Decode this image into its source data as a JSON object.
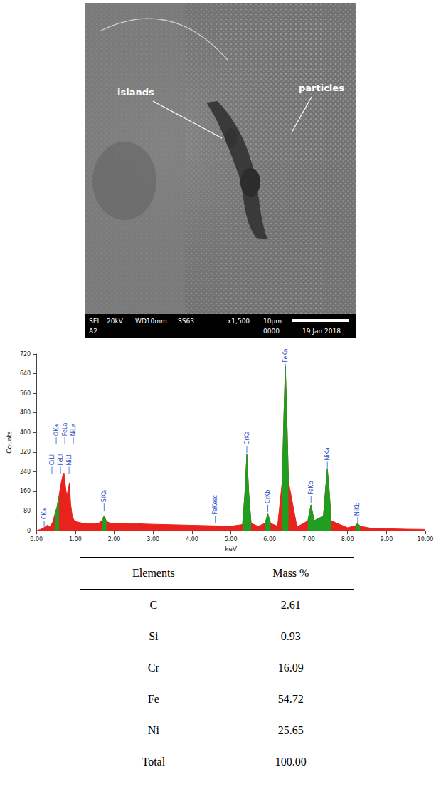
{
  "image": {
    "labels": [
      "islands",
      "particles"
    ],
    "info_bar": {
      "row1": [
        "SEI",
        "20kV",
        "WD10mm",
        "SS63",
        "x1,500",
        "10µm"
      ],
      "row2": [
        "A2",
        "0000",
        "19 Jan 2018"
      ]
    }
  },
  "chart_data": {
    "type": "line",
    "xlabel": "keV",
    "ylabel": "Counts",
    "x": [
      0,
      0.1,
      0.2,
      0.28,
      0.35,
      0.42,
      0.48,
      0.53,
      0.58,
      0.63,
      0.68,
      0.71,
      0.74,
      0.78,
      0.82,
      0.85,
      0.88,
      0.92,
      0.97,
      1.05,
      1.2,
      1.4,
      1.6,
      1.68,
      1.74,
      1.8,
      1.9,
      2.2,
      2.6,
      3.0,
      3.5,
      4.0,
      4.5,
      5.0,
      5.3,
      5.36,
      5.41,
      5.46,
      5.52,
      5.7,
      5.88,
      5.95,
      6.02,
      6.2,
      6.32,
      6.36,
      6.4,
      6.44,
      6.48,
      6.7,
      6.98,
      7.06,
      7.14,
      7.38,
      7.44,
      7.48,
      7.52,
      7.58,
      8.0,
      8.2,
      8.26,
      8.32,
      8.6,
      9.0,
      9.5,
      10.0
    ],
    "series": [
      {
        "color": "#e8231e",
        "values": [
          0,
          5,
          12,
          22,
          15,
          35,
          70,
          95,
          140,
          190,
          225,
          235,
          190,
          140,
          170,
          195,
          110,
          60,
          42,
          35,
          30,
          28,
          30,
          40,
          60,
          38,
          30,
          30,
          28,
          26,
          24,
          22,
          20,
          18,
          25,
          150,
          310,
          150,
          30,
          18,
          30,
          68,
          30,
          18,
          200,
          450,
          670,
          450,
          200,
          15,
          40,
          105,
          40,
          60,
          180,
          250,
          180,
          40,
          12,
          20,
          30,
          18,
          10,
          8,
          6,
          5
        ]
      },
      {
        "color": "#1f9e1f",
        "values": [
          null,
          null,
          null,
          null,
          null,
          null,
          70,
          95,
          140,
          null,
          null,
          null,
          null,
          null,
          null,
          null,
          null,
          null,
          null,
          null,
          null,
          null,
          null,
          40,
          60,
          38,
          null,
          null,
          null,
          null,
          null,
          null,
          null,
          null,
          25,
          150,
          310,
          150,
          30,
          null,
          30,
          68,
          30,
          null,
          200,
          450,
          670,
          450,
          200,
          null,
          40,
          105,
          40,
          60,
          180,
          250,
          180,
          40,
          null,
          20,
          30,
          18,
          null,
          null,
          null,
          null
        ]
      }
    ],
    "xlim": [
      0,
      10
    ],
    "xticks": [
      {
        "value": 0,
        "label": "0.00"
      },
      {
        "value": 1,
        "label": "1.00"
      },
      {
        "value": 2,
        "label": "2.00"
      },
      {
        "value": 3,
        "label": "3.00"
      },
      {
        "value": 4,
        "label": "4.00"
      },
      {
        "value": 5,
        "label": "5.00"
      },
      {
        "value": 6,
        "label": "6.00"
      },
      {
        "value": 7,
        "label": "7.00"
      },
      {
        "value": 8,
        "label": "8.00"
      },
      {
        "value": 9,
        "label": "9.00"
      },
      {
        "value": 10,
        "label": "10.00"
      }
    ],
    "ylim": [
      0,
      720
    ],
    "yticks": [
      0,
      80,
      160,
      240,
      320,
      400,
      480,
      560,
      640,
      720
    ],
    "grid": false,
    "annotations": [
      {
        "text": "CKa",
        "x": 0.2,
        "y": 40
      },
      {
        "text": "CrLl",
        "x": 0.4,
        "y": 260
      },
      {
        "text": "OKa",
        "x": 0.51,
        "y": 380
      },
      {
        "text": "FeLl",
        "x": 0.62,
        "y": 260
      },
      {
        "text": "FeLa",
        "x": 0.73,
        "y": 380
      },
      {
        "text": "NiLl",
        "x": 0.84,
        "y": 260
      },
      {
        "text": "NiLa",
        "x": 0.95,
        "y": 380
      },
      {
        "text": "SiKa",
        "x": 1.74,
        "y": 110
      },
      {
        "text": "FeKesc",
        "x": 4.6,
        "y": 60
      },
      {
        "text": "CrKa",
        "x": 5.41,
        "y": 345
      },
      {
        "text": "CrKb",
        "x": 5.95,
        "y": 105
      },
      {
        "text": "FeKa",
        "x": 6.4,
        "y": 680
      },
      {
        "text": "FeKb",
        "x": 7.06,
        "y": 140
      },
      {
        "text": "NiKa",
        "x": 7.48,
        "y": 280
      },
      {
        "text": "NiKb",
        "x": 8.26,
        "y": 55
      }
    ]
  },
  "table": {
    "header": [
      "Elements",
      "Mass %"
    ],
    "rows": [
      [
        "C",
        "2.61"
      ],
      [
        "Si",
        "0.93"
      ],
      [
        "Cr",
        "16.09"
      ],
      [
        "Fe",
        "54.72"
      ],
      [
        "Ni",
        "25.65"
      ],
      [
        "Total",
        "100.00"
      ]
    ]
  }
}
